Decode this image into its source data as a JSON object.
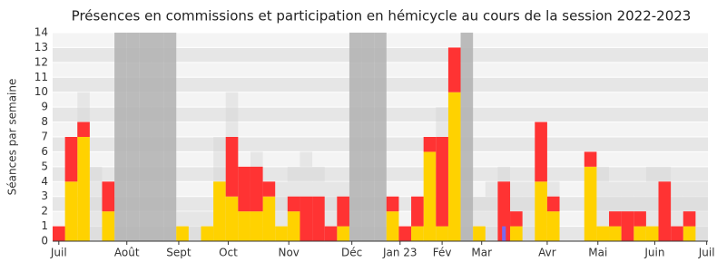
{
  "chart_data": {
    "type": "stacked-bar",
    "title": "Présences en commissions et participation en hémicycle au cours de la session 2022-2023",
    "y_label": "Séances par semaine",
    "categories": [
      null,
      null,
      null,
      null,
      null,
      null,
      null,
      null,
      null,
      null,
      null,
      null,
      null,
      null,
      null,
      null,
      null,
      null,
      null,
      null,
      null,
      null,
      null,
      null,
      null,
      null,
      null,
      null,
      null,
      null,
      null,
      null,
      null,
      null,
      null,
      null,
      null,
      null,
      null,
      null,
      null,
      null,
      null,
      null,
      null,
      null,
      null,
      null,
      null,
      null,
      null,
      null,
      null
    ],
    "background_series": [
      {
        "color": "#b0b0b0",
        "values": [
          null,
          null,
          null,
          null,
          null,
          14,
          14,
          14,
          14,
          14,
          null,
          null,
          null,
          null,
          null,
          null,
          null,
          null,
          null,
          null,
          null,
          null,
          null,
          null,
          14,
          14,
          14,
          null,
          null,
          null,
          null,
          null,
          null,
          14,
          null,
          null,
          null,
          null,
          null,
          null,
          null,
          null,
          null,
          null,
          null,
          null,
          null,
          null,
          null,
          null,
          null,
          null,
          null
        ]
      },
      {
        "color": "#d4d4d4",
        "values": [
          0,
          0,
          10,
          5,
          0,
          0,
          0,
          0,
          0,
          0,
          2,
          2,
          2,
          7,
          10,
          0,
          6,
          0,
          4,
          5,
          6,
          5,
          4,
          4,
          0,
          0,
          0,
          0,
          0,
          0,
          0,
          9,
          12,
          0,
          3,
          4,
          5,
          4,
          4,
          0,
          4,
          0,
          0,
          0,
          5,
          4,
          4,
          4,
          5,
          5,
          4,
          4,
          4
        ]
      }
    ],
    "series": [
      {
        "color": "#ffd200",
        "values": [
          0,
          4,
          7,
          0,
          2,
          0,
          0,
          0,
          0,
          0,
          1,
          0,
          1,
          4,
          3,
          2,
          2,
          3,
          1,
          2,
          0,
          0,
          0,
          1,
          0,
          0,
          0,
          2,
          0,
          1,
          6,
          1,
          10,
          0,
          1,
          0,
          0,
          1,
          0,
          4,
          2,
          0,
          0,
          5,
          1,
          1,
          0,
          1,
          1,
          0,
          0,
          1,
          0
        ]
      },
      {
        "color": "#ff3333",
        "values": [
          1,
          3,
          1,
          0,
          2,
          0,
          0,
          0,
          0,
          0,
          0,
          0,
          0,
          0,
          4,
          3,
          3,
          1,
          0,
          1,
          3,
          3,
          1,
          2,
          0,
          0,
          0,
          1,
          1,
          2,
          1,
          6,
          3,
          0,
          0,
          0,
          4,
          1,
          0,
          4,
          1,
          0,
          0,
          1,
          0,
          1,
          2,
          1,
          0,
          4,
          1,
          1,
          0
        ]
      }
    ],
    "marker_series": {
      "color": "#7b68ee",
      "values": [
        0,
        0,
        0,
        0,
        0,
        0,
        0,
        0,
        0,
        0,
        0,
        0,
        0,
        0,
        0,
        0,
        0,
        0,
        0,
        0,
        0,
        0,
        0,
        0,
        0,
        0,
        0,
        0,
        0,
        0,
        0,
        0,
        0,
        0,
        0,
        0,
        1,
        0,
        0,
        0,
        0,
        0,
        0,
        0,
        0,
        0,
        0,
        0,
        0,
        0,
        0,
        0,
        0
      ]
    },
    "xlim": [
      0,
      53
    ],
    "xticks": [
      {
        "value": 0.5,
        "label": "Juil"
      },
      {
        "value": 6,
        "label": "Août"
      },
      {
        "value": 10.2,
        "label": "Sept"
      },
      {
        "value": 14.2,
        "label": "Oct"
      },
      {
        "value": 19.1,
        "label": "Nov"
      },
      {
        "value": 24.2,
        "label": "Déc"
      },
      {
        "value": 28.1,
        "label": "Jan 23"
      },
      {
        "value": 31.5,
        "label": "Fév"
      },
      {
        "value": 34.7,
        "label": "Mar"
      },
      {
        "value": 40,
        "label": "Avr"
      },
      {
        "value": 44.1,
        "label": "Mai"
      },
      {
        "value": 48.7,
        "label": "Juin"
      },
      {
        "value": 52.9,
        "label": "Juil"
      }
    ],
    "ylim": [
      0,
      14
    ],
    "yticks": [
      0,
      1,
      2,
      3,
      4,
      5,
      6,
      7,
      8,
      9,
      10,
      11,
      12,
      13,
      14
    ],
    "grid": true
  }
}
